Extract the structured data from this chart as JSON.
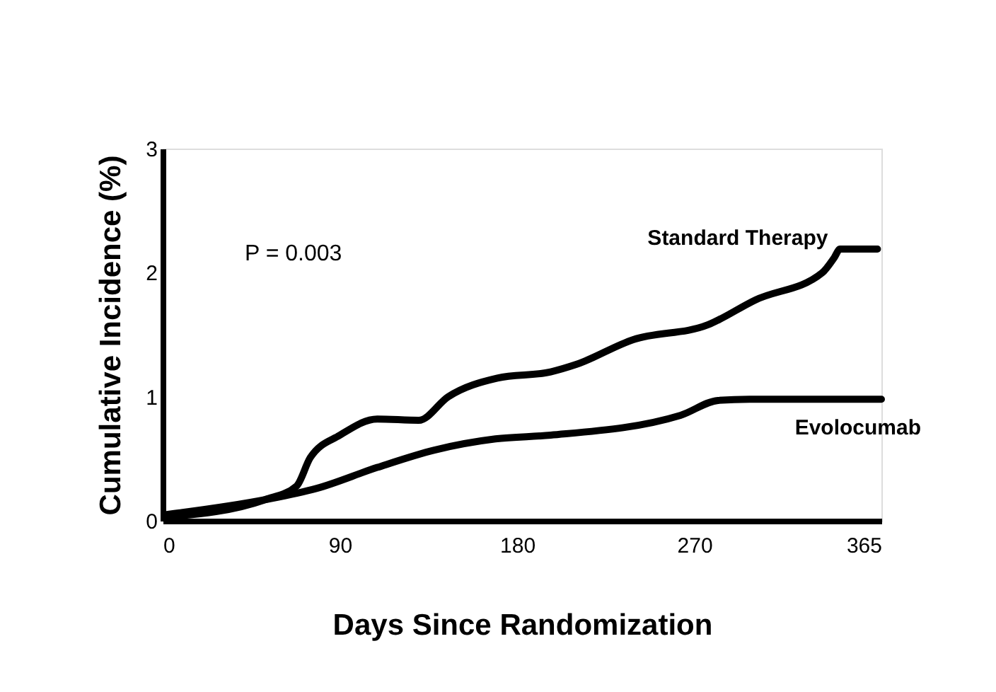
{
  "chart_data": {
    "type": "line",
    "xlabel": "Days Since Randomization",
    "ylabel": "Cumulative Incidence (%)",
    "xlim": [
      0,
      365
    ],
    "xticks": [
      0,
      90,
      180,
      270,
      365
    ],
    "ylim": [
      0,
      3
    ],
    "yticks": [
      0,
      1,
      2,
      3
    ],
    "grid": false,
    "marker": "none",
    "line_style": "solid",
    "annotations": [
      "P = 0.003"
    ],
    "series": [
      {
        "name": "Standard Therapy",
        "color": "#000000",
        "x": [
          2,
          52,
          68,
          75,
          90,
          109,
          130,
          145,
          170,
          197,
          210,
          239,
          277,
          301,
          335,
          341,
          344,
          363
        ],
        "values": [
          0.03,
          0.17,
          0.28,
          0.51,
          0.69,
          0.82,
          0.81,
          1.0,
          1.15,
          1.2,
          1.26,
          1.46,
          1.58,
          1.78,
          2.0,
          2.12,
          2.19,
          2.19
        ]
      },
      {
        "name": "Evolocumab",
        "color": "#000000",
        "x": [
          2,
          52,
          78,
          109,
          138,
          169,
          197,
          263,
          282,
          298,
          365
        ],
        "values": [
          0.05,
          0.17,
          0.26,
          0.43,
          0.57,
          0.66,
          0.69,
          0.85,
          0.97,
          0.98,
          0.98
        ]
      }
    ]
  }
}
